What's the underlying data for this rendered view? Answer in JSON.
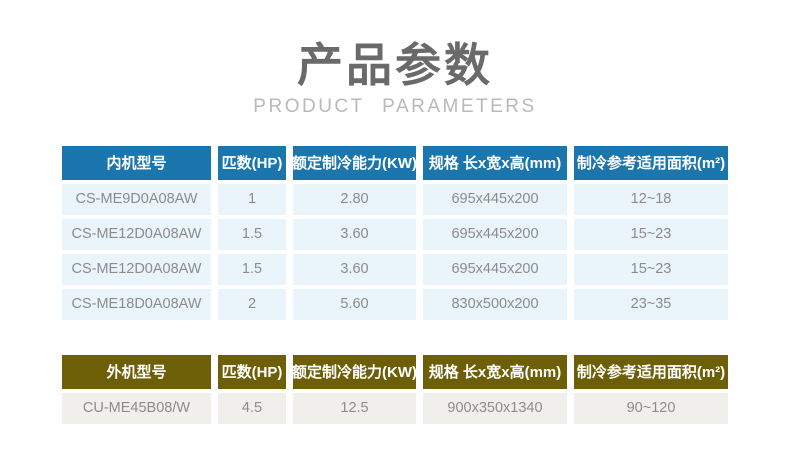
{
  "page": {
    "title": "产品参数",
    "subtitle": "PRODUCT  PARAMETERS"
  },
  "colors": {
    "indoor_header_bg": "#1b76ae",
    "indoor_row_bg": "#e9f4fb",
    "outdoor_header_bg": "#6d5f07",
    "outdoor_row_bg": "#f0efeb",
    "title_text": "#6a6a6a",
    "subtitle_text": "#b9b9b9",
    "cell_text": "#8c8c8c",
    "header_text": "#ffffff"
  },
  "indoor_table": {
    "headers": [
      "内机型号",
      "匹数(HP)",
      "额定制冷能力(KW)",
      "规格 长x宽x高(mm)",
      "制冷参考适用面积(m²)"
    ],
    "rows": [
      [
        "CS-ME9D0A08AW",
        "1",
        "2.80",
        "695x445x200",
        "12~18"
      ],
      [
        "CS-ME12D0A08AW",
        "1.5",
        "3.60",
        "695x445x200",
        "15~23"
      ],
      [
        "CS-ME12D0A08AW",
        "1.5",
        "3.60",
        "695x445x200",
        "15~23"
      ],
      [
        "CS-ME18D0A08AW",
        "2",
        "5.60",
        "830x500x200",
        "23~35"
      ]
    ]
  },
  "outdoor_table": {
    "headers": [
      "外机型号",
      "匹数(HP)",
      "额定制冷能力(KW)",
      "规格 长x宽x高(mm)",
      "制冷参考适用面积(m²)"
    ],
    "rows": [
      [
        "CU-ME45B08/W",
        "4.5",
        "12.5",
        "900x350x1340",
        "90~120"
      ]
    ]
  }
}
